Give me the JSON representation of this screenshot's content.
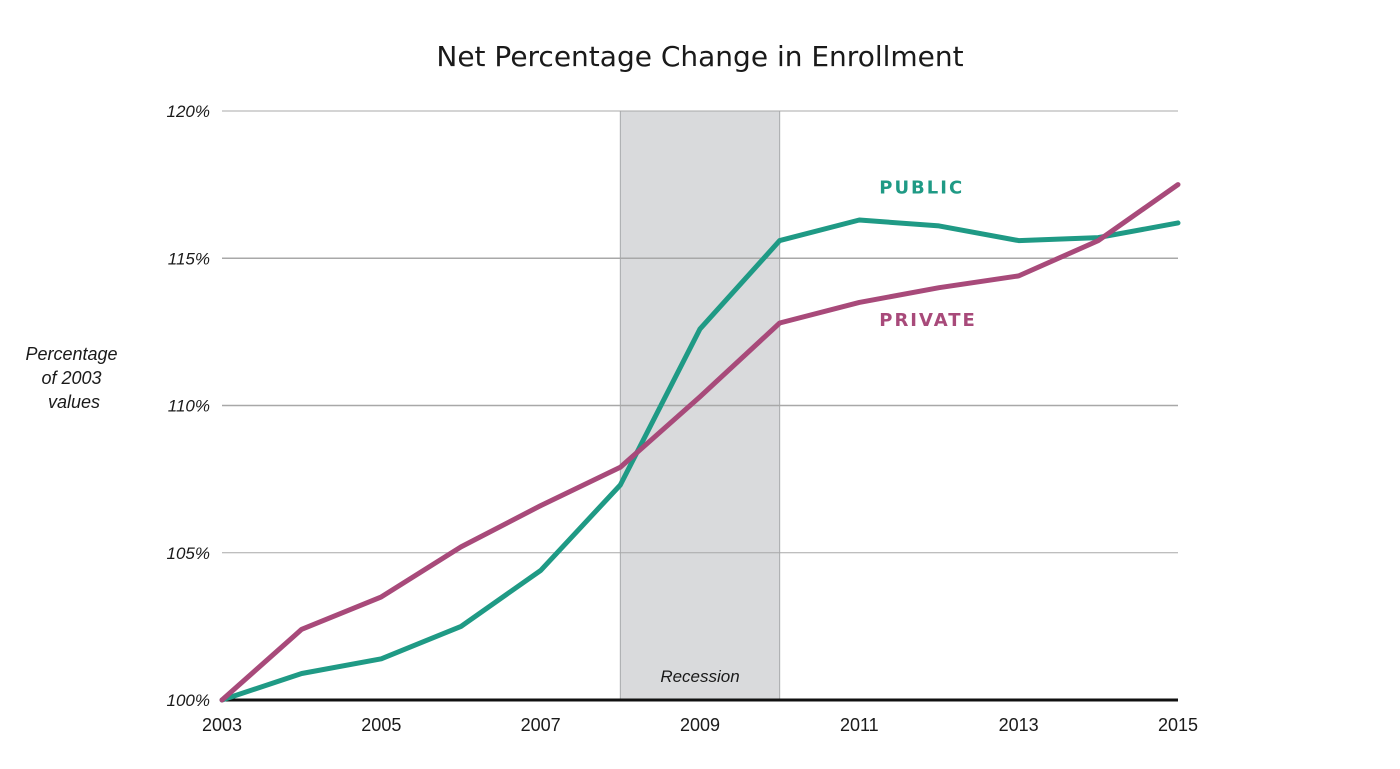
{
  "chart_data": {
    "type": "line",
    "title": "Net Percentage Change in Enrollment",
    "ylabel_lines": [
      "Percentage",
      "of 2003",
      "values"
    ],
    "xlabel": "",
    "x": [
      2003,
      2004,
      2005,
      2006,
      2007,
      2008,
      2009,
      2010,
      2011,
      2012,
      2013,
      2014,
      2015
    ],
    "x_ticks": [
      2003,
      2005,
      2007,
      2009,
      2011,
      2013,
      2015
    ],
    "x_tick_labels": [
      "2003",
      "2005",
      "2007",
      "2009",
      "2011",
      "2013",
      "2015"
    ],
    "xlim": [
      2003,
      2015
    ],
    "y_ticks": [
      100,
      105,
      110,
      115,
      120
    ],
    "y_tick_labels": [
      "100%",
      "105%",
      "110%",
      "115%",
      "120%"
    ],
    "ylim": [
      100,
      120
    ],
    "grid": true,
    "shaded_band": {
      "label": "Recession",
      "x_start": 2008,
      "x_end": 2010,
      "color": "#d9dadc"
    },
    "series": [
      {
        "name": "PUBLIC",
        "color": "#1f9a85",
        "label_at": [
          2011.25,
          117.2
        ],
        "values": [
          100,
          100.9,
          101.4,
          102.5,
          104.4,
          107.3,
          112.6,
          115.6,
          116.3,
          116.1,
          115.6,
          115.7,
          116.2
        ]
      },
      {
        "name": "PRIVATE",
        "color": "#a84a7a",
        "label_at": [
          2011.25,
          112.7
        ],
        "values": [
          100,
          102.4,
          103.5,
          105.2,
          106.6,
          107.9,
          110.3,
          112.8,
          113.5,
          114.0,
          114.4,
          115.6,
          117.5
        ]
      }
    ]
  }
}
